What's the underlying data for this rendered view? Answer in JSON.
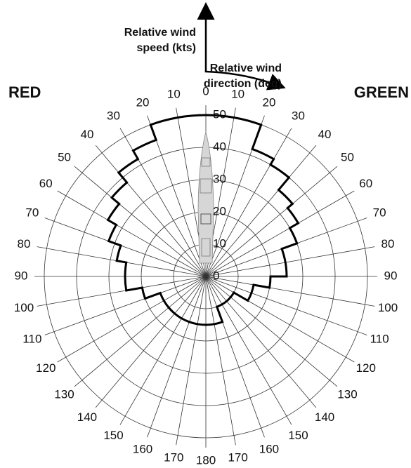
{
  "chart_data": {
    "type": "polar-envelope",
    "speed_axis_label": [
      "Relative wind",
      "speed (kts)"
    ],
    "direction_axis_label": [
      "Relative wind",
      "direction (deg)"
    ],
    "port_label": "RED",
    "port_color": "#d81e1e",
    "starboard_label": "GREEN",
    "starboard_color": "#22b022",
    "rlim": [
      0,
      50
    ],
    "rticks": [
      0,
      10,
      20,
      30,
      40,
      50
    ],
    "angle_ticks": [
      {
        "value": -170,
        "label": "170"
      },
      {
        "value": -160,
        "label": "160"
      },
      {
        "value": -150,
        "label": "150"
      },
      {
        "value": -140,
        "label": "140"
      },
      {
        "value": -130,
        "label": "130"
      },
      {
        "value": -120,
        "label": "120"
      },
      {
        "value": -110,
        "label": "110"
      },
      {
        "value": -100,
        "label": "100"
      },
      {
        "value": -90,
        "label": "90"
      },
      {
        "value": -80,
        "label": "80"
      },
      {
        "value": -70,
        "label": "70"
      },
      {
        "value": -60,
        "label": "60"
      },
      {
        "value": -50,
        "label": "50"
      },
      {
        "value": -40,
        "label": "40"
      },
      {
        "value": -30,
        "label": "30"
      },
      {
        "value": -20,
        "label": "20"
      },
      {
        "value": -10,
        "label": "10"
      },
      0,
      10,
      20,
      30,
      40,
      50,
      60,
      70,
      80,
      90,
      100,
      110,
      120,
      130,
      140,
      150,
      160,
      170,
      180
    ],
    "x": [
      -180,
      -170,
      -160,
      -150,
      -140,
      -130,
      -120,
      -110,
      -100,
      -90,
      -80,
      -70,
      -60,
      -50,
      -40,
      -30,
      -20,
      -10,
      0,
      10,
      20,
      30,
      40,
      50,
      60,
      70,
      80,
      90,
      100,
      110,
      120,
      130,
      140,
      150,
      160,
      170
    ],
    "values": [
      15,
      15,
      15,
      15,
      15,
      15,
      15,
      20,
      25,
      25,
      28,
      32,
      35,
      38,
      42,
      45,
      50,
      50,
      50,
      50,
      42,
      40,
      35,
      33,
      30,
      25,
      25,
      20,
      15,
      15,
      10,
      10,
      10,
      10,
      15,
      15
    ],
    "color": "#000000",
    "grid": true
  }
}
